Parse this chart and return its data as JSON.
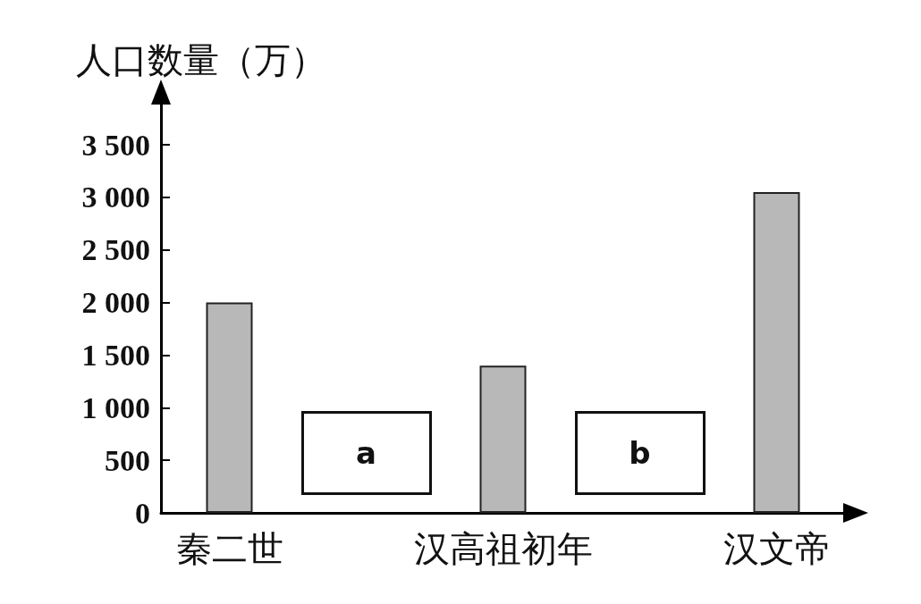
{
  "chart_data": {
    "type": "bar",
    "ylabel": "人口数量（万）",
    "categories": [
      "秦二世",
      null,
      "汉高祖初年",
      null,
      "汉文帝"
    ],
    "values": [
      2000,
      null,
      1400,
      null,
      3050
    ],
    "color": "#b8b8b8",
    "ylim": [
      0,
      3900
    ],
    "yticks": [
      0,
      500,
      {
        "value": 1000,
        "label": "1 000"
      },
      {
        "value": 1500,
        "label": "1 500"
      },
      {
        "value": 2000,
        "label": "2 000"
      },
      {
        "value": 2500,
        "label": "2 500"
      },
      {
        "value": 3000,
        "label": "3 000"
      },
      {
        "value": 3500,
        "label": "3 500"
      }
    ],
    "annotations": [
      "a",
      "b"
    ],
    "grid": false
  }
}
